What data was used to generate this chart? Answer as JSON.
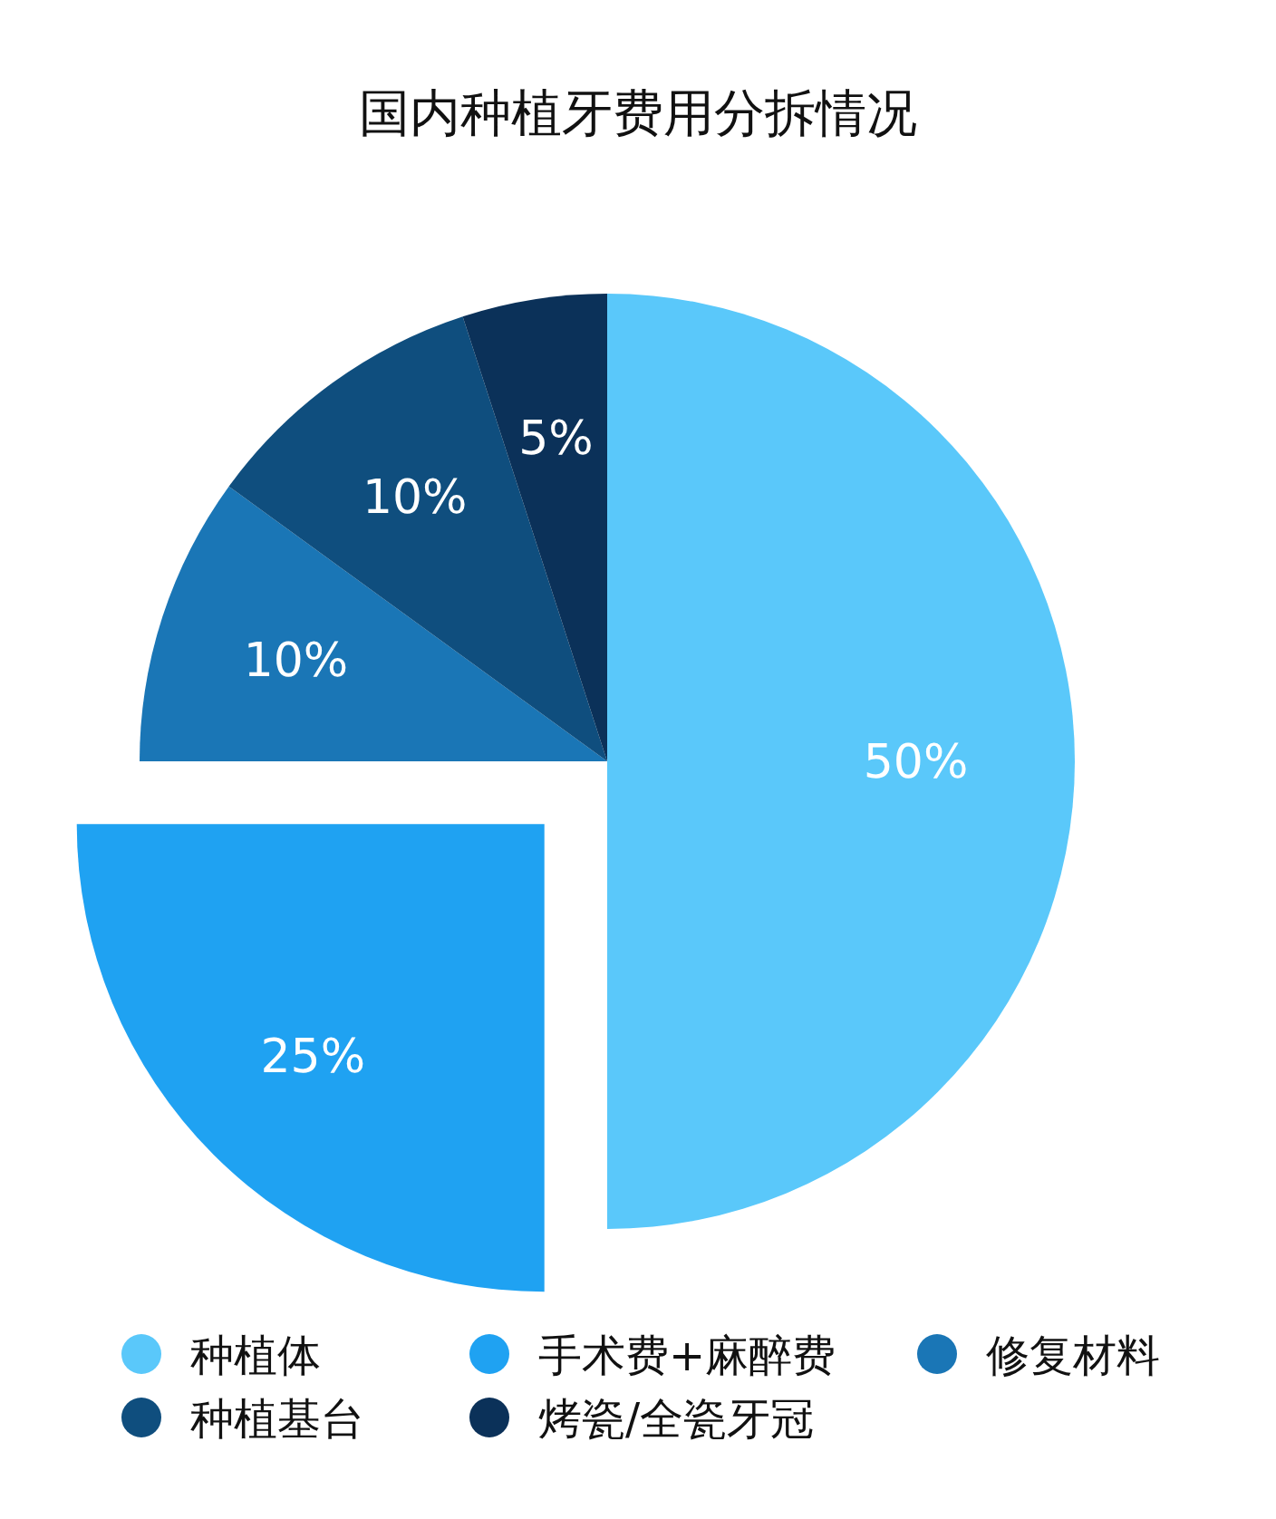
{
  "chart_data": {
    "type": "pie",
    "title": "国内种植牙费用分拆情况",
    "categories": [
      "种植体",
      "手术费+麻醉费",
      "修复材料",
      "种植基台",
      "烤瓷/全瓷牙冠"
    ],
    "values": [
      50,
      25,
      10,
      10,
      5
    ],
    "colors": [
      "#5ac8fa",
      "#1fa2f2",
      "#1a76b6",
      "#0f4e7e",
      "#0b3159"
    ],
    "value_labels": [
      "50%",
      "25%",
      "10%",
      "10%",
      "5%"
    ],
    "legend": "bottom"
  }
}
